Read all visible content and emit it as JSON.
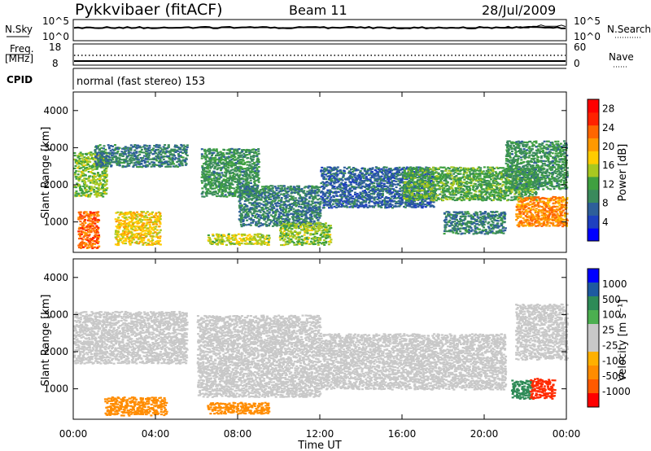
{
  "header": {
    "station": "Pykkvibaer (fitACF)",
    "beam": "Beam 11",
    "date": "28/Jul/2009"
  },
  "top_panels": {
    "nsky_label": "N.Sky",
    "nsky_ticks": [
      "10^5",
      "10^0"
    ],
    "nsearch_label": "N.Search",
    "nsearch_ticks": [
      "10^5",
      "10^0"
    ],
    "freq_label": "Freq.",
    "freq_unit": "[MHz]",
    "freq_ticks": [
      "18",
      "8"
    ],
    "nave_label": "Nave",
    "nave_ticks": [
      "60",
      "0"
    ],
    "cpid_label": "CPID",
    "cpid_text": "normal (fast stereo) 153"
  },
  "colors": {
    "power_scale": [
      "#0000ff",
      "#1e40c0",
      "#2e5f9a",
      "#3a8a5c",
      "#3fa040",
      "#a8c820",
      "#ffcc00",
      "#ff9900",
      "#ff6600",
      "#ff2200",
      "#ff0000"
    ],
    "velocity_scale": [
      "#ff0000",
      "#ff5a00",
      "#ff8c00",
      "#ffb000",
      "#c8c8c8",
      "#c8c8c8",
      "#4caf50",
      "#2e8b57",
      "#1e5aa0",
      "#0000ff"
    ]
  },
  "chart_data": [
    {
      "type": "heatmap",
      "title": "",
      "xlabel": "",
      "ylabel": "Slant Range [km]",
      "xlim": [
        "00:00",
        "24:00"
      ],
      "ylim": [
        180,
        4500
      ],
      "x_tick_labels": [
        "00:00",
        "04:00",
        "08:00",
        "12:00",
        "16:00",
        "20:00",
        "00:00"
      ],
      "y_tick_labels": [
        "1000",
        "2000",
        "3000",
        "4000"
      ],
      "y_tick_values": [
        1000,
        2000,
        3000,
        4000
      ],
      "colorbar_label": "Power [dB]",
      "colorbar_ticks": [
        "4",
        "8",
        "12",
        "16",
        "20",
        "24",
        "28"
      ],
      "colorbar_tick_values": [
        4,
        8,
        12,
        16,
        20,
        24,
        28
      ],
      "colorbar_range": [
        0,
        30
      ],
      "grid": false,
      "regions": [
        {
          "t0": 0.0,
          "t1": 1.6,
          "r0": 1700,
          "r1": 2900,
          "value": 14
        },
        {
          "t0": 0.2,
          "t1": 1.2,
          "r0": 300,
          "r1": 1300,
          "value": 24
        },
        {
          "t0": 2.0,
          "t1": 4.2,
          "r0": 400,
          "r1": 1300,
          "value": 18
        },
        {
          "t0": 1.0,
          "t1": 5.5,
          "r0": 2500,
          "r1": 3100,
          "value": 8
        },
        {
          "t0": 6.2,
          "t1": 9.0,
          "r0": 1700,
          "r1": 3000,
          "value": 10
        },
        {
          "t0": 6.5,
          "t1": 9.5,
          "r0": 400,
          "r1": 700,
          "value": 16
        },
        {
          "t0": 8.0,
          "t1": 12.0,
          "r0": 900,
          "r1": 2000,
          "value": 8
        },
        {
          "t0": 10.0,
          "t1": 12.5,
          "r0": 400,
          "r1": 1000,
          "value": 14
        },
        {
          "t0": 12.0,
          "t1": 17.5,
          "r0": 1400,
          "r1": 2500,
          "value": 6
        },
        {
          "t0": 16.0,
          "t1": 22.5,
          "r0": 1600,
          "r1": 2500,
          "value": 12
        },
        {
          "t0": 18.0,
          "t1": 21.0,
          "r0": 700,
          "r1": 1300,
          "value": 8
        },
        {
          "t0": 21.5,
          "t1": 24.0,
          "r0": 900,
          "r1": 1700,
          "value": 22
        },
        {
          "t0": 21.0,
          "t1": 24.0,
          "r0": 1900,
          "r1": 3200,
          "value": 10
        }
      ]
    },
    {
      "type": "heatmap",
      "title": "",
      "xlabel": "Time UT",
      "ylabel": "Slant Range [km]",
      "xlim": [
        "00:00",
        "24:00"
      ],
      "ylim": [
        180,
        4500
      ],
      "x_tick_labels": [
        "00:00",
        "04:00",
        "08:00",
        "12:00",
        "16:00",
        "20:00",
        "00:00"
      ],
      "y_tick_labels": [
        "1000",
        "2000",
        "3000",
        "4000"
      ],
      "y_tick_values": [
        1000,
        2000,
        3000,
        4000
      ],
      "colorbar_label": "Velocity [m s⁻¹]",
      "colorbar_ticks": [
        "1000",
        "500",
        "100",
        "25",
        "-25",
        "-100",
        "-500",
        "-1000"
      ],
      "grid": false,
      "regions": [
        {
          "t0": 0.0,
          "t1": 5.5,
          "r0": 1700,
          "r1": 3100,
          "value": 0
        },
        {
          "t0": 1.5,
          "t1": 4.5,
          "r0": 300,
          "r1": 800,
          "value": -150
        },
        {
          "t0": 6.5,
          "t1": 9.5,
          "r0": 350,
          "r1": 650,
          "value": -150
        },
        {
          "t0": 6.0,
          "t1": 12.0,
          "r0": 800,
          "r1": 3000,
          "value": 0
        },
        {
          "t0": 12.0,
          "t1": 21.0,
          "r0": 1000,
          "r1": 2500,
          "value": 0
        },
        {
          "t0": 21.3,
          "t1": 22.3,
          "r0": 750,
          "r1": 1250,
          "value": 300
        },
        {
          "t0": 22.2,
          "t1": 23.4,
          "r0": 750,
          "r1": 1300,
          "value": -600
        },
        {
          "t0": 21.5,
          "t1": 24.0,
          "r0": 1800,
          "r1": 3300,
          "value": 0
        }
      ]
    }
  ]
}
